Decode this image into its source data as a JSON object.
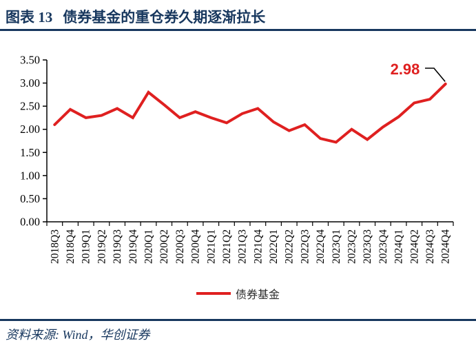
{
  "header": {
    "label": "图表 13",
    "title": "债券基金的重仓券久期逐渐拉长"
  },
  "footer": {
    "text": "资料来源: Wind，华创证券"
  },
  "colors": {
    "navy": "#17375E",
    "red": "#DF2020",
    "axis": "#000000",
    "callout": "#000000",
    "legend_text": "#2B2B2B",
    "background": "#FFFFFF"
  },
  "chart_data": {
    "type": "line",
    "title": "债券基金的重仓券久期逐渐拉长",
    "xlabel": "",
    "ylabel": "",
    "ylim": [
      0,
      3.5
    ],
    "y_tick_step": 0.5,
    "y_tick_labels": [
      "0.00",
      "0.50",
      "1.00",
      "1.50",
      "2.00",
      "2.50",
      "3.00",
      "3.50"
    ],
    "grid": false,
    "legend_position": "bottom",
    "categories": [
      "2018Q3",
      "2018Q4",
      "2019Q1",
      "2019Q2",
      "2019Q3",
      "2019Q4",
      "2020Q1",
      "2020Q2",
      "2020Q3",
      "2020Q4",
      "2021Q1",
      "2021Q2",
      "2021Q3",
      "2021Q4",
      "2022Q1",
      "2022Q2",
      "2022Q3",
      "2022Q4",
      "2023Q1",
      "2023Q2",
      "2023Q3",
      "2023Q4",
      "2024Q1",
      "2024Q2",
      "2024Q3",
      "2024Q4"
    ],
    "series": [
      {
        "name": "债券基金",
        "color": "#DF2020",
        "values": [
          2.1,
          2.43,
          2.25,
          2.3,
          2.45,
          2.25,
          2.8,
          2.53,
          2.25,
          2.38,
          2.25,
          2.14,
          2.34,
          2.45,
          2.16,
          1.97,
          2.1,
          1.8,
          1.72,
          2.0,
          1.78,
          2.05,
          2.27,
          2.57,
          2.65,
          2.98
        ]
      }
    ],
    "annotation": {
      "text": "2.98",
      "series": "债券基金",
      "category": "2024Q4",
      "value": 2.98
    }
  }
}
